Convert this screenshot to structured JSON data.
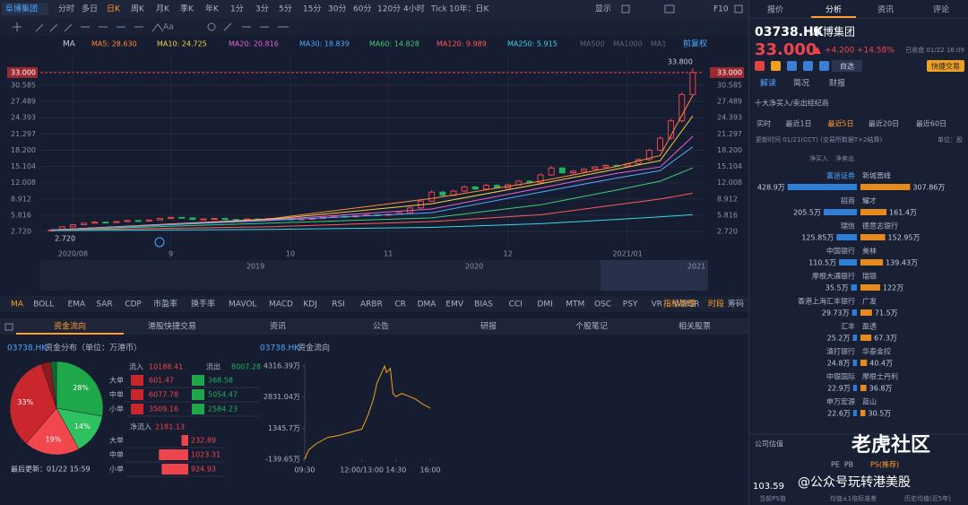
{
  "header": {
    "stock_tab": "阜博集团",
    "periods": [
      "分时",
      "多日",
      "日K",
      "周K",
      "月K",
      "季K",
      "年K",
      "1分",
      "3分",
      "5分",
      "15分",
      "30分",
      "60分",
      "120分",
      "4小时",
      "Tick",
      "10年：日K"
    ],
    "active_period": 2,
    "display": "显示",
    "f10": "F10",
    "text_tool": "Aa"
  },
  "chart_data": [
    {
      "type": "candlestick",
      "ma_label": "MA",
      "adjust": "前复权",
      "ohlc": [
        [
          2.9,
          3.1,
          2.72,
          3.0
        ],
        [
          3.0,
          3.7,
          2.9,
          3.6
        ],
        [
          3.6,
          4.1,
          3.5,
          4.0
        ],
        [
          4.0,
          4.4,
          3.9,
          4.3
        ],
        [
          4.3,
          4.7,
          4.2,
          4.5
        ],
        [
          4.5,
          4.6,
          4.3,
          4.4
        ],
        [
          4.4,
          4.7,
          4.3,
          4.6
        ],
        [
          4.6,
          4.9,
          4.5,
          4.8
        ],
        [
          4.8,
          4.9,
          4.6,
          4.7
        ],
        [
          4.7,
          5.0,
          4.6,
          4.9
        ],
        [
          4.9,
          5.3,
          4.8,
          5.2
        ],
        [
          5.2,
          5.5,
          5.1,
          5.4
        ],
        [
          5.4,
          5.5,
          5.2,
          5.3
        ],
        [
          5.3,
          5.4,
          4.9,
          5.0
        ],
        [
          5.0,
          5.2,
          4.9,
          5.1
        ],
        [
          5.1,
          5.3,
          5.0,
          5.2
        ],
        [
          5.2,
          5.3,
          4.9,
          5.0
        ],
        [
          5.0,
          5.1,
          4.8,
          4.9
        ],
        [
          4.9,
          5.2,
          4.8,
          5.1
        ],
        [
          5.1,
          5.2,
          4.9,
          5.0
        ],
        [
          5.0,
          5.3,
          4.9,
          5.2
        ],
        [
          5.2,
          5.3,
          5.0,
          5.1
        ],
        [
          5.1,
          5.2,
          4.9,
          5.0
        ],
        [
          5.0,
          5.2,
          4.9,
          5.1
        ],
        [
          5.1,
          5.3,
          5.0,
          5.2
        ],
        [
          5.2,
          5.5,
          5.1,
          5.4
        ],
        [
          5.4,
          5.7,
          5.3,
          5.6
        ],
        [
          5.6,
          5.7,
          5.4,
          5.5
        ],
        [
          5.5,
          5.8,
          5.4,
          5.7
        ],
        [
          5.7,
          6.0,
          5.6,
          5.9
        ],
        [
          5.9,
          6.0,
          5.7,
          5.8
        ],
        [
          5.8,
          6.1,
          5.7,
          6.0
        ],
        [
          6.0,
          6.5,
          5.9,
          6.3
        ],
        [
          6.3,
          7.4,
          6.2,
          7.2
        ],
        [
          7.2,
          8.8,
          7.0,
          8.5
        ],
        [
          8.5,
          10.6,
          8.3,
          10.2
        ],
        [
          10.2,
          10.5,
          9.4,
          9.6
        ],
        [
          9.6,
          10.7,
          9.5,
          10.4
        ],
        [
          10.4,
          11.5,
          10.2,
          11.2
        ],
        [
          11.2,
          11.4,
          10.6,
          10.8
        ],
        [
          10.8,
          11.8,
          10.7,
          11.5
        ],
        [
          11.5,
          11.7,
          10.9,
          11.0
        ],
        [
          11.0,
          11.8,
          10.9,
          11.6
        ],
        [
          11.6,
          12.5,
          11.5,
          12.3
        ],
        [
          12.3,
          12.5,
          11.8,
          12.0
        ],
        [
          12.0,
          13.8,
          11.9,
          13.5
        ],
        [
          13.5,
          15.2,
          13.3,
          14.8
        ],
        [
          14.8,
          15.0,
          13.7,
          13.9
        ],
        [
          13.9,
          14.4,
          13.7,
          14.2
        ],
        [
          14.2,
          14.8,
          14.0,
          14.6
        ],
        [
          14.6,
          15.2,
          14.4,
          15.0
        ],
        [
          15.0,
          15.5,
          14.8,
          15.3
        ],
        [
          15.3,
          15.5,
          15.0,
          15.2
        ],
        [
          15.2,
          15.8,
          15.0,
          15.6
        ],
        [
          15.6,
          16.7,
          15.4,
          16.4
        ],
        [
          16.4,
          18.5,
          16.2,
          18.2
        ],
        [
          18.2,
          20.9,
          18.0,
          20.5
        ],
        [
          20.5,
          24.2,
          20.2,
          23.8
        ],
        [
          23.8,
          29.2,
          23.5,
          28.8
        ],
        [
          28.8,
          33.8,
          28.5,
          33.0
        ]
      ],
      "up_color": "#f0444c",
      "down_color": "#1fb25a",
      "xlim": [
        -1,
        60
      ],
      "ylim": [
        2.04,
        36.57
      ],
      "xticks": [
        {
          "value": 2,
          "label": "2020/08"
        },
        {
          "value": 11,
          "label": "9"
        },
        {
          "value": 22,
          "label": "10"
        },
        {
          "value": 31,
          "label": "11"
        },
        {
          "value": 42,
          "label": "12"
        },
        {
          "value": 53,
          "label": "2021/01"
        }
      ],
      "yticks": [
        {
          "value": 2.72,
          "label": "2.720"
        },
        5.816,
        8.912,
        12.008,
        15.104,
        {
          "value": 18.2,
          "label": "18.200"
        },
        21.297,
        24.393,
        27.489,
        30.585,
        {
          "value": 33,
          "label": "33.000"
        }
      ],
      "high_label": "33.800",
      "low_label": "2.720",
      "ma_x": [
        0,
        20,
        35,
        45,
        52,
        56,
        59
      ],
      "series": [
        {
          "name": "MA5: 28.630",
          "color": "#ff8a3d",
          "values": [
            3.0,
            5.1,
            9.0,
            12.3,
            15.1,
            17.2,
            28.63
          ]
        },
        {
          "name": "MA10: 24.725",
          "color": "#f2d04b",
          "values": [
            3.0,
            5.0,
            8.0,
            11.8,
            14.6,
            16.2,
            24.725
          ]
        },
        {
          "name": "MA20: 20.816",
          "color": "#e862d6",
          "values": [
            3.0,
            4.9,
            7.0,
            11.0,
            13.8,
            15.0,
            20.816
          ]
        },
        {
          "name": "MA30: 18.839",
          "color": "#4fa8ff",
          "values": [
            3.0,
            4.8,
            6.3,
            10.2,
            12.9,
            14.3,
            18.839
          ]
        },
        {
          "name": "MA60: 14.828",
          "color": "#41c97a",
          "values": [
            3.0,
            4.3,
            5.3,
            7.8,
            10.6,
            12.3,
            14.828
          ]
        },
        {
          "name": "MA120: 9.989",
          "color": "#ff5a5a",
          "values": [
            3.0,
            3.6,
            4.6,
            5.9,
            7.8,
            8.9,
            9.989
          ]
        },
        {
          "name": "MA250: 5.915",
          "color": "#3cd6e6",
          "values": [
            2.9,
            3.1,
            3.5,
            4.2,
            5.0,
            5.5,
            5.915
          ]
        }
      ],
      "inactive_ma": [
        "MA500",
        "MA1000",
        "MA1"
      ],
      "navigator": [
        "2019",
        "2020",
        "2021"
      ],
      "grid": true
    },
    {
      "type": "pie",
      "code": "03738.HK",
      "title": "资金分布（单位：万港币）",
      "values": [
        27.8,
        14.2,
        19.3,
        33.4,
        3.3,
        2.0
      ],
      "value_labels": [
        "28%",
        "14%",
        "19%",
        "33%",
        null,
        null
      ],
      "colors": [
        "#1fa84a",
        "#2fc060",
        "#f2474d",
        "#c9272d",
        "#8e1c1c",
        "#0f6b30"
      ],
      "updated": "最后更新：01/22 15:59"
    },
    {
      "type": "line",
      "code": "03738.HK",
      "title": "资金流向",
      "color": "#f0a020",
      "x": [
        0,
        10,
        30,
        60,
        90,
        120,
        150,
        165,
        180,
        190,
        200,
        210,
        215,
        225,
        232,
        240,
        255,
        270,
        290,
        310,
        330
      ],
      "values": [
        -139.65,
        300,
        600,
        900,
        1000,
        1150,
        1300,
        1900,
        2700,
        3500,
        3900,
        4316.39,
        4000,
        4200,
        3000,
        2850,
        3000,
        2900,
        2750,
        2500,
        2300
      ],
      "xlim": [
        0,
        330
      ],
      "xticks": [
        {
          "value": 0,
          "label": "09:30"
        },
        {
          "value": 150,
          "label": "12:00/13:00"
        },
        {
          "value": 240,
          "label": "14:30"
        },
        {
          "value": 330,
          "label": "16:00"
        }
      ],
      "ylim": [
        -139.65,
        4316.39
      ],
      "yticks": [
        {
          "value": 4316.39,
          "label": "4316.39万"
        },
        {
          "value": 2831.04,
          "label": "2831.04万"
        },
        {
          "value": 1345.7,
          "label": "1345.7万"
        },
        {
          "value": -139.65,
          "label": "-139.65万"
        }
      ]
    }
  ],
  "flow_table": {
    "inflow_label": "流入",
    "inflow": 10188.41,
    "outflow_label": "流出",
    "outflow": 8007.28,
    "rows": [
      "大单",
      "中单",
      "小单"
    ],
    "in": [
      601.47,
      6077.78,
      3509.16
    ],
    "out": [
      368.58,
      5054.47,
      2584.23
    ],
    "net_label": "净流入",
    "net": 2181.13,
    "net_values": [
      232.89,
      1023.31,
      924.93
    ]
  },
  "indicators": {
    "items": [
      "MA",
      "BOLL",
      "EMA",
      "SAR",
      "CDP",
      "市盈率",
      "换手率",
      "MAVOL",
      "MACD",
      "KDJ",
      "RSI",
      "ARBR",
      "CR",
      "DMA",
      "EMV",
      "BIAS",
      "CCI",
      "DMI",
      "MTM",
      "OSC",
      "PSY",
      "VR",
      "WMSR"
    ],
    "manage": "指标管理",
    "session": "时段",
    "chips": "筹码"
  },
  "bottom_tabs": {
    "items": [
      "资金流向",
      "港股快捷交易",
      "资讯",
      "公告",
      "研报",
      "个股笔记",
      "相关股票"
    ],
    "active": 0
  },
  "quote": {
    "tabs": [
      "报价",
      "分析",
      "资讯",
      "评论"
    ],
    "active_tab": 1,
    "code": "03738.HK",
    "name": "阜博集团",
    "price": "33.000",
    "change": "+4.200",
    "change_pct": "+14.58%",
    "status": "已收盘 01/22 16:09",
    "watchlist": "自选",
    "trade": "快捷交易",
    "subtabs": [
      "解读",
      "简况",
      "财报"
    ],
    "brokers_title": "十大净买入/卖出经纪商",
    "periods": [
      "实时",
      "最近1日",
      "最近5日",
      "最近20日",
      "最近60日"
    ],
    "active_period": 2,
    "update": "更新时间 01/21(CCT) (交易所数据T+2结算)",
    "unit": "单位：股",
    "buy_label": "净买入",
    "sell_label": "净卖出"
  },
  "brokers": {
    "buy": {
      "names": [
        "富途证券",
        "招商",
        "瑞信",
        "中国银行",
        "摩根大通银行",
        "香港上海汇丰银行",
        "汇丰",
        "渣打银行",
        "中银国际",
        "申万宏源"
      ],
      "values": [
        428.9,
        205.5,
        125.85,
        110.5,
        35.5,
        29.73,
        25.2,
        24.8,
        22.9,
        22.6
      ],
      "value_labels": [
        "428.9万",
        "205.5万",
        "125.85万",
        "110.5万",
        "35.5万",
        "29.73万",
        "25.2万",
        "24.8万",
        "22.9万",
        "22.6万"
      ]
    },
    "sell": {
      "names": [
        "新城晋峰",
        "耀才",
        "德意志银行",
        "美林",
        "瑞银",
        "广发",
        "盈透",
        "华泰金控",
        "摩根士丹利",
        "蓝山"
      ],
      "values": [
        307.86,
        161.4,
        152.95,
        139.43,
        122,
        71.5,
        67.3,
        40.4,
        36.8,
        30.5
      ],
      "value_labels": [
        "307.86万",
        "161.4万",
        "152.95万",
        "139.43万",
        "122万",
        "71.5万",
        "67.3万",
        "40.4万",
        "36.8万",
        "30.5万"
      ]
    }
  },
  "valuation": {
    "title": "公司估值",
    "metrics": [
      "PE",
      "PB",
      "PS(推荐)"
    ],
    "active_metric": 2,
    "value": "103.59",
    "captions": [
      "当前PS值",
      "均值±1倍标准差",
      "历史均值(近5年)"
    ]
  },
  "watermark": {
    "brand": "老虎社区",
    "account": "@公众号玩转港美股"
  }
}
